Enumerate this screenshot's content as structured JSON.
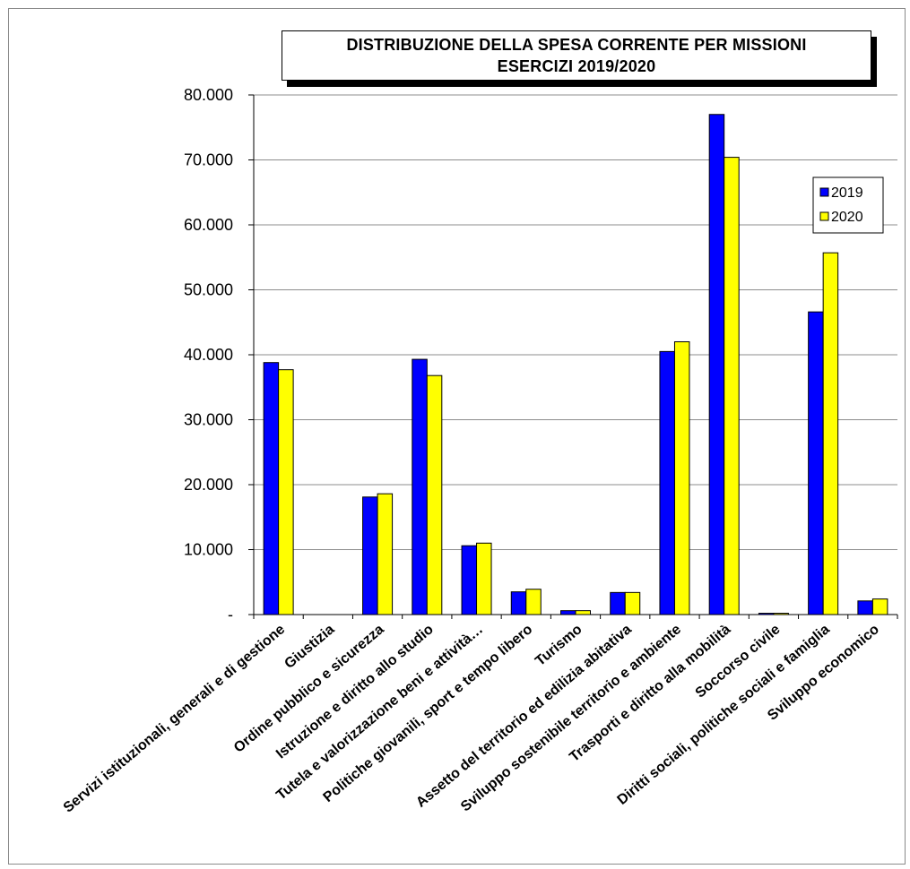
{
  "chart_data": {
    "type": "bar",
    "title": "DISTRIBUZIONE DELLA SPESA CORRENTE PER MISSIONI",
    "subtitle": "ESERCIZI 2019/2020",
    "categories": [
      "Servizi istituzionali, generali e di gestione",
      "Giustizia",
      "Ordine pubblico e sicurezza",
      "Istruzione e diritto allo studio",
      "Tutela e valorizzazione beni e attività…",
      "Politiche giovanili, sport e tempo libero",
      "Turismo",
      "Assetto del territorio ed edilizia abitativa",
      "Sviluppo sostenibile territorio e ambiente",
      "Trasporti e diritto alla mobilità",
      "Soccorso civile",
      "Diritti sociali, politiche sociali e famiglia",
      "Sviluppo economico"
    ],
    "series": [
      {
        "name": "2019",
        "color": "#0000ff",
        "values": [
          38800,
          0,
          18100,
          39300,
          10600,
          3500,
          600,
          3400,
          40500,
          77000,
          200,
          46600,
          2100
        ]
      },
      {
        "name": "2020",
        "color": "#ffff00",
        "values": [
          37700,
          0,
          18600,
          36800,
          11000,
          3900,
          600,
          3400,
          42000,
          70400,
          200,
          55700,
          2400
        ]
      }
    ],
    "ylim": [
      0,
      80000
    ],
    "y_ticks": [
      0,
      10000,
      20000,
      30000,
      40000,
      50000,
      60000,
      70000,
      80000
    ],
    "y_tick_labels": [
      "-",
      "10.000",
      "20.000",
      "30.000",
      "40.000",
      "50.000",
      "60.000",
      "70.000",
      "80.000"
    ],
    "grid": true,
    "legend_position": "top-right"
  }
}
